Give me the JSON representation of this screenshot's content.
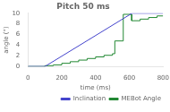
{
  "chart_data": {
    "type": "line",
    "title": "Pitch 50 ms",
    "xlabel": "time (ms)",
    "ylabel": "angle (°)",
    "xlim": [
      0,
      800
    ],
    "ylim": [
      0,
      10
    ],
    "xticks": [
      0,
      200,
      400,
      600,
      800
    ],
    "yticks": [
      0,
      2,
      4,
      6,
      8,
      10
    ],
    "grid": false,
    "legend": "lower right",
    "series": [
      {
        "name": "Inclination",
        "color": "#4444cc",
        "x": [
          0,
          100,
          616,
          800
        ],
        "values": [
          0,
          0,
          10,
          10
        ]
      },
      {
        "name": "MEBot Angle",
        "color": "#228833",
        "x": [
          0,
          100,
          100,
          150,
          150,
          200,
          200,
          250,
          250,
          300,
          300,
          350,
          350,
          400,
          400,
          450,
          450,
          500,
          500,
          514,
          514,
          564,
          564,
          614,
          614,
          664,
          664,
          714,
          714,
          764,
          764,
          800
        ],
        "values": [
          0,
          0,
          0.15,
          0.15,
          0.3,
          0.3,
          0.6,
          0.6,
          0.9,
          0.9,
          1.2,
          1.2,
          1.5,
          1.5,
          1.8,
          1.8,
          2.1,
          2.1,
          2.4,
          2.4,
          4.8,
          4.8,
          9.8,
          9.8,
          8.6,
          8.6,
          8.9,
          8.9,
          9.2,
          9.2,
          9.5,
          9.5
        ]
      }
    ]
  }
}
